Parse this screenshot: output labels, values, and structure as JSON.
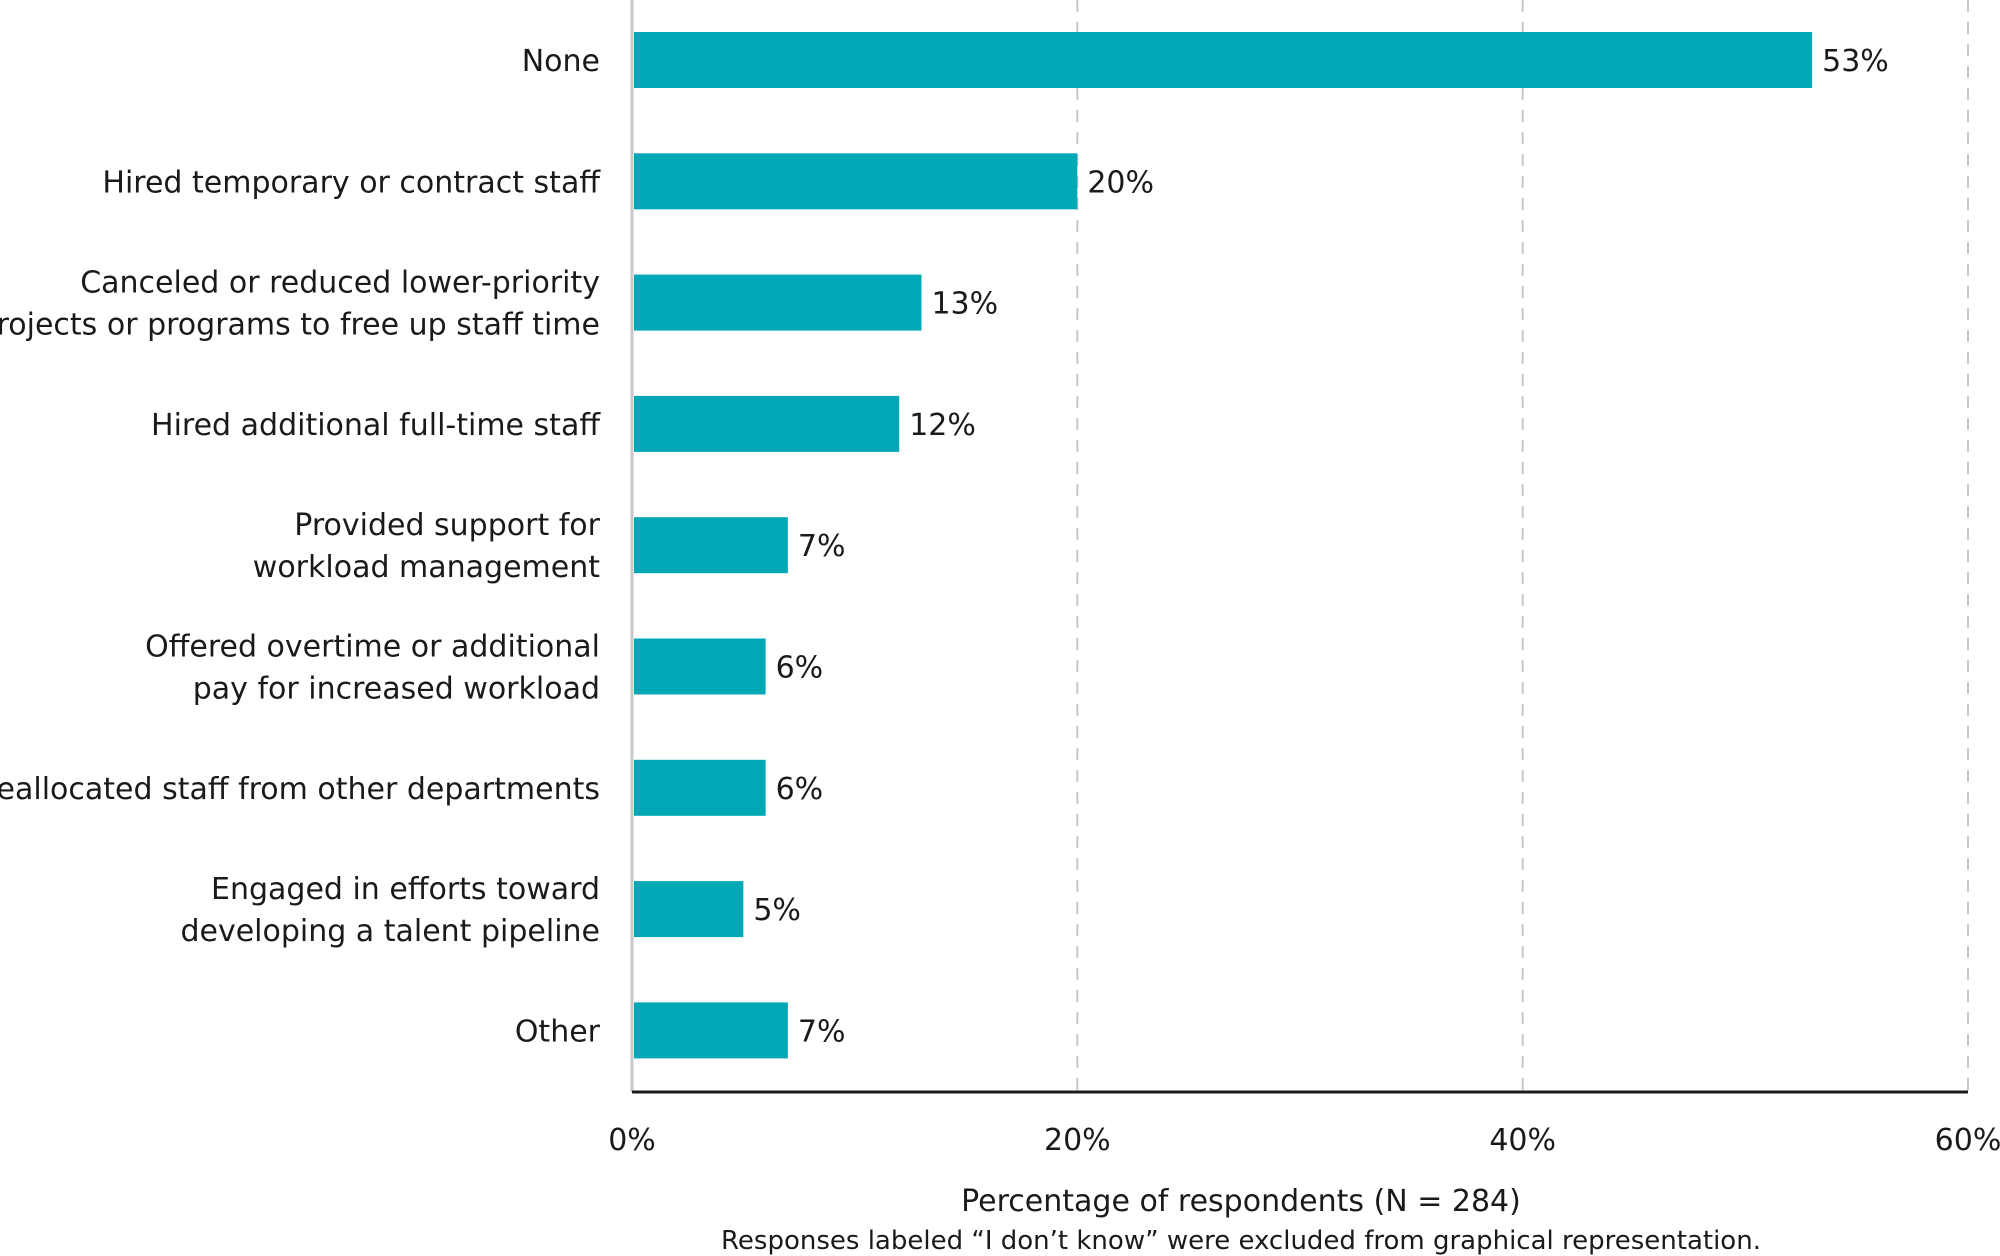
{
  "chart_data": {
    "type": "bar",
    "orientation": "horizontal",
    "categories": [
      [
        "None"
      ],
      [
        "Hired temporary or contract staff"
      ],
      [
        "Canceled or reduced lower-priority",
        "projects or programs to free up staff time"
      ],
      [
        "Hired additional full-time staff"
      ],
      [
        "Provided support for",
        "workload management"
      ],
      [
        "Offered overtime or additional",
        "pay for increased workload"
      ],
      [
        "Reallocated staff from other departments"
      ],
      [
        "Engaged in efforts toward",
        "developing a talent pipeline"
      ],
      [
        "Other"
      ]
    ],
    "values": [
      53,
      20,
      13,
      12,
      7,
      6,
      6,
      5,
      7
    ],
    "value_labels": [
      "53%",
      "20%",
      "13%",
      "12%",
      "7%",
      "6%",
      "6%",
      "5%",
      "7%"
    ],
    "xlim": [
      0,
      60
    ],
    "x_ticks": [
      0,
      20,
      40,
      60
    ],
    "x_tick_labels": [
      "0%",
      "20%",
      "40%",
      "60%"
    ],
    "xlabel": "Percentage of respondents (N = 284)",
    "note": "Responses labeled “I don’t know” were excluded from graphical representation.",
    "bar_color": "#00a8b5",
    "grid": "vertical dashed",
    "legend": "none"
  }
}
